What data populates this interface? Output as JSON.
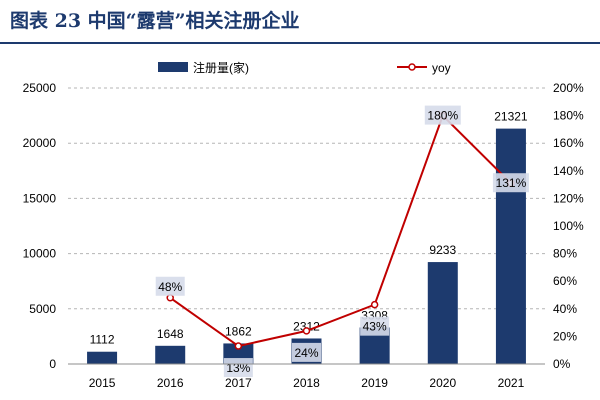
{
  "figure": {
    "title": "图表 23  中国“露营”相关注册企业"
  },
  "chart_data": {
    "type": "bar",
    "categories": [
      "2015",
      "2016",
      "2017",
      "2018",
      "2019",
      "2020",
      "2021"
    ],
    "series": [
      {
        "name": "注册量(家)",
        "type": "bar",
        "axis": "left",
        "values": [
          1112,
          1648,
          1862,
          2312,
          3308,
          9233,
          21321
        ],
        "labels": [
          "1112",
          "1648",
          "1862",
          "2312",
          "3308",
          "9233",
          "21321"
        ],
        "color": "#1d3a6e"
      },
      {
        "name": "yoy",
        "type": "line",
        "axis": "right",
        "values": [
          null,
          48,
          13,
          24,
          43,
          180,
          131
        ],
        "labels": [
          "",
          "48%",
          "13%",
          "24%",
          "43%",
          "180%",
          "131%"
        ],
        "color": "#c00000"
      }
    ],
    "y_left": {
      "ylim": [
        0,
        25000
      ],
      "ticks": [
        "0",
        "5000",
        "10000",
        "15000",
        "20000",
        "25000"
      ]
    },
    "y_right": {
      "ylim": [
        0,
        200
      ],
      "ticks": [
        "0%",
        "20%",
        "40%",
        "60%",
        "80%",
        "100%",
        "120%",
        "140%",
        "160%",
        "180%",
        "200%"
      ]
    },
    "grid": true,
    "legend_position": "top"
  }
}
